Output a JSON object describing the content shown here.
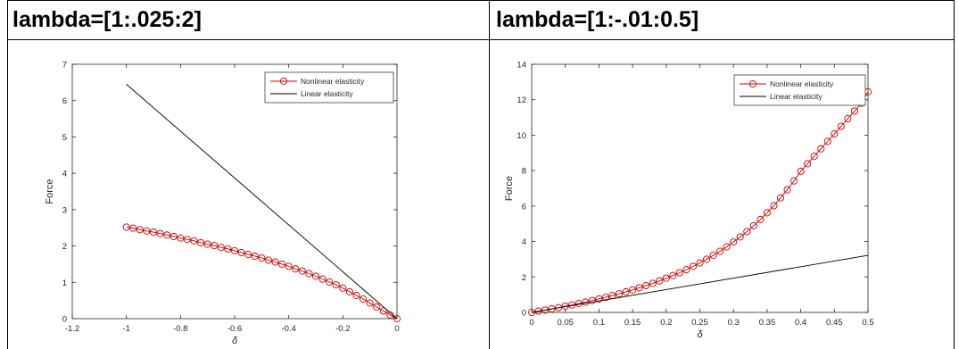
{
  "headers": [
    "lambda=[1:.025:2]",
    "lambda=[1:-.01:0.5]"
  ],
  "chart_data": [
    {
      "type": "line",
      "title": "",
      "xlabel": "δ",
      "ylabel": "Force",
      "xlim": [
        -1.2,
        0
      ],
      "ylim": [
        0,
        7
      ],
      "xticks": [
        -1.2,
        -1,
        -0.8,
        -0.6,
        -0.4,
        -0.2,
        0
      ],
      "yticks": [
        0,
        1,
        2,
        3,
        4,
        5,
        6,
        7
      ],
      "legend_position": "top-right",
      "grid": false,
      "series": [
        {
          "name": "Nonlinear elasticity",
          "color": "#cc0000",
          "marker": "circle",
          "x": [
            -1,
            -0.975,
            -0.95,
            -0.925,
            -0.9,
            -0.875,
            -0.85,
            -0.825,
            -0.8,
            -0.775,
            -0.75,
            -0.725,
            -0.7,
            -0.675,
            -0.65,
            -0.625,
            -0.6,
            -0.575,
            -0.55,
            -0.525,
            -0.5,
            -0.475,
            -0.45,
            -0.425,
            -0.4,
            -0.375,
            -0.35,
            -0.325,
            -0.3,
            -0.275,
            -0.25,
            -0.225,
            -0.2,
            -0.175,
            -0.15,
            -0.125,
            -0.1,
            -0.075,
            -0.05,
            -0.025,
            0
          ],
          "y": [
            2.52,
            2.49,
            2.45,
            2.41,
            2.38,
            2.34,
            2.3,
            2.26,
            2.22,
            2.18,
            2.14,
            2.09,
            2.05,
            2.01,
            1.96,
            1.92,
            1.87,
            1.82,
            1.77,
            1.72,
            1.67,
            1.61,
            1.56,
            1.5,
            1.44,
            1.37,
            1.31,
            1.24,
            1.17,
            1.09,
            1.01,
            0.93,
            0.84,
            0.74,
            0.64,
            0.54,
            0.43,
            0.32,
            0.21,
            0.1,
            0
          ]
        },
        {
          "name": "Linear elasticity",
          "color": "#000000",
          "marker": "none",
          "x": [
            -1,
            0
          ],
          "y": [
            6.45,
            0
          ]
        }
      ]
    },
    {
      "type": "line",
      "title": "",
      "xlabel": "δ",
      "ylabel": "Force",
      "xlim": [
        0,
        0.5
      ],
      "ylim": [
        0,
        14
      ],
      "xticks": [
        0,
        0.05,
        0.1,
        0.15,
        0.2,
        0.25,
        0.3,
        0.35,
        0.4,
        0.45,
        0.5
      ],
      "yticks": [
        0,
        2,
        4,
        6,
        8,
        10,
        12,
        14
      ],
      "legend_position": "top-right",
      "grid": false,
      "series": [
        {
          "name": "Nonlinear elasticity",
          "color": "#cc0000",
          "marker": "circle",
          "x": [
            0,
            0.01,
            0.02,
            0.03,
            0.04,
            0.05,
            0.06,
            0.07,
            0.08,
            0.09,
            0.1,
            0.11,
            0.12,
            0.13,
            0.14,
            0.15,
            0.16,
            0.17,
            0.18,
            0.19,
            0.2,
            0.21,
            0.22,
            0.23,
            0.24,
            0.25,
            0.26,
            0.27,
            0.28,
            0.29,
            0.3,
            0.31,
            0.32,
            0.33,
            0.34,
            0.35,
            0.36,
            0.37,
            0.38,
            0.39,
            0.4,
            0.41,
            0.42,
            0.43,
            0.44,
            0.45,
            0.46,
            0.47,
            0.48,
            0.49,
            0.5
          ],
          "y": [
            0,
            0.07,
            0.13,
            0.2,
            0.27,
            0.35,
            0.42,
            0.5,
            0.58,
            0.67,
            0.76,
            0.85,
            0.95,
            1.05,
            1.16,
            1.27,
            1.39,
            1.51,
            1.64,
            1.78,
            1.93,
            2.08,
            2.24,
            2.41,
            2.6,
            2.79,
            3.0,
            3.22,
            3.45,
            3.7,
            3.97,
            4.26,
            4.56,
            4.89,
            5.24,
            5.62,
            6.02,
            6.46,
            6.92,
            7.42,
            7.96,
            8.39,
            8.81,
            9.23,
            9.65,
            10.07,
            10.5,
            10.93,
            11.36,
            11.8,
            12.45
          ]
        },
        {
          "name": "Linear elasticity",
          "color": "#000000",
          "marker": "none",
          "x": [
            0,
            0.5
          ],
          "y": [
            0,
            3.22
          ]
        }
      ]
    }
  ]
}
